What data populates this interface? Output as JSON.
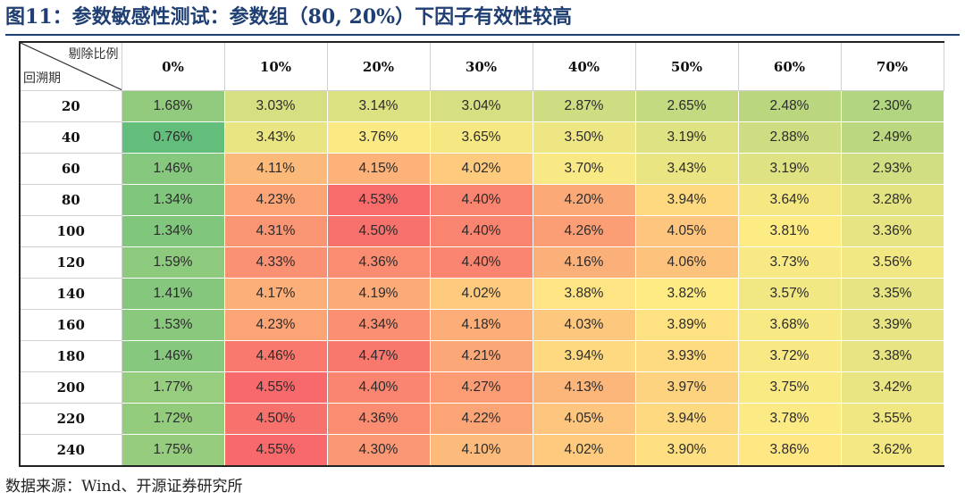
{
  "figure": {
    "title": "图11：参数敏感性测试：参数组（80, 20%）下因子有效性较高",
    "source": "数据来源：Wind、开源证券研究所"
  },
  "chart_data": {
    "type": "heatmap",
    "corner_col_label": "剔除比例",
    "corner_row_label": "回溯期",
    "columns": [
      "0%",
      "10%",
      "20%",
      "30%",
      "40%",
      "50%",
      "60%",
      "70%"
    ],
    "rows": [
      "20",
      "40",
      "60",
      "80",
      "100",
      "120",
      "140",
      "160",
      "180",
      "200",
      "220",
      "240"
    ],
    "values": [
      [
        1.68,
        3.03,
        3.14,
        3.04,
        2.87,
        2.65,
        2.48,
        2.3
      ],
      [
        0.76,
        3.43,
        3.76,
        3.65,
        3.5,
        3.19,
        2.88,
        2.49
      ],
      [
        1.46,
        4.11,
        4.15,
        4.02,
        3.7,
        3.43,
        3.19,
        2.93
      ],
      [
        1.34,
        4.23,
        4.53,
        4.4,
        4.2,
        3.94,
        3.64,
        3.28
      ],
      [
        1.34,
        4.31,
        4.5,
        4.4,
        4.26,
        4.05,
        3.81,
        3.36
      ],
      [
        1.59,
        4.33,
        4.36,
        4.4,
        4.16,
        4.06,
        3.73,
        3.56
      ],
      [
        1.41,
        4.17,
        4.19,
        4.02,
        3.88,
        3.82,
        3.57,
        3.35
      ],
      [
        1.53,
        4.23,
        4.34,
        4.18,
        4.03,
        3.89,
        3.68,
        3.39
      ],
      [
        1.46,
        4.46,
        4.47,
        4.21,
        3.94,
        3.93,
        3.72,
        3.38
      ],
      [
        1.77,
        4.55,
        4.4,
        4.27,
        4.13,
        3.97,
        3.75,
        3.42
      ],
      [
        1.72,
        4.5,
        4.36,
        4.22,
        4.05,
        3.94,
        3.78,
        3.55
      ],
      [
        1.75,
        4.55,
        4.3,
        4.1,
        4.02,
        3.9,
        3.86,
        3.62
      ]
    ],
    "value_format": "percent_2dp",
    "color_scale": {
      "low": "#63be7b",
      "mid": "#ffeb84",
      "high": "#f8696b"
    }
  }
}
